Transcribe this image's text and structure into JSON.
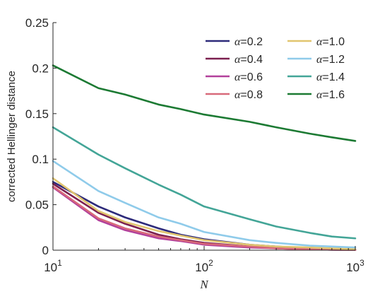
{
  "chart_data": {
    "type": "line",
    "xscale": "log",
    "xlim": [
      10,
      1000
    ],
    "ylim": [
      0,
      0.25
    ],
    "xlabel": "N",
    "ylabel": "corrected Hellinger distance",
    "x_ticks": [
      10,
      100,
      1000
    ],
    "x_tick_labels": [
      {
        "base": "10",
        "exp": "1"
      },
      {
        "base": "10",
        "exp": "2"
      },
      {
        "base": "10",
        "exp": "3"
      }
    ],
    "y_ticks": [
      0,
      0.05,
      0.1,
      0.15,
      0.2,
      0.25
    ],
    "y_tick_labels": [
      "0",
      "0.05",
      "0.1",
      "0.15",
      "0.2",
      "0.25"
    ],
    "grid": false,
    "legend_position": "top-right",
    "x": [
      10,
      20,
      30,
      50,
      70,
      100,
      200,
      300,
      500,
      700,
      1000
    ],
    "series": [
      {
        "name": "α=0.2",
        "color": "#2d2a7a",
        "values": [
          0.075,
          0.048,
          0.036,
          0.024,
          0.017,
          0.012,
          0.006,
          0.004,
          0.002,
          0.001,
          0.0005
        ]
      },
      {
        "name": "α=0.4",
        "color": "#7b1f4f",
        "values": [
          0.073,
          0.041,
          0.029,
          0.017,
          0.012,
          0.008,
          0.004,
          0.002,
          0.001,
          0.0005,
          0.0003
        ]
      },
      {
        "name": "α=0.6",
        "color": "#b2409b",
        "values": [
          0.069,
          0.033,
          0.022,
          0.013,
          0.01,
          0.006,
          0.003,
          0.002,
          0.001,
          0.0005,
          0.0003
        ]
      },
      {
        "name": "α=0.8",
        "color": "#d86a7a",
        "values": [
          0.07,
          0.035,
          0.024,
          0.015,
          0.011,
          0.007,
          0.004,
          0.002,
          0.001,
          0.0005,
          0.0003
        ]
      },
      {
        "name": "α=1.0",
        "color": "#e1c56f",
        "values": [
          0.079,
          0.043,
          0.031,
          0.021,
          0.016,
          0.011,
          0.006,
          0.004,
          0.003,
          0.002,
          0.001
        ]
      },
      {
        "name": "α=1.2",
        "color": "#8fcbea",
        "values": [
          0.098,
          0.065,
          0.052,
          0.036,
          0.029,
          0.02,
          0.011,
          0.008,
          0.005,
          0.004,
          0.003
        ]
      },
      {
        "name": "α=1.4",
        "color": "#43a597",
        "values": [
          0.135,
          0.105,
          0.09,
          0.072,
          0.061,
          0.048,
          0.034,
          0.026,
          0.019,
          0.015,
          0.013
        ]
      },
      {
        "name": "α=1.6",
        "color": "#1c7a33",
        "values": [
          0.203,
          0.178,
          0.171,
          0.16,
          0.155,
          0.149,
          0.141,
          0.135,
          0.128,
          0.124,
          0.12
        ]
      }
    ]
  }
}
